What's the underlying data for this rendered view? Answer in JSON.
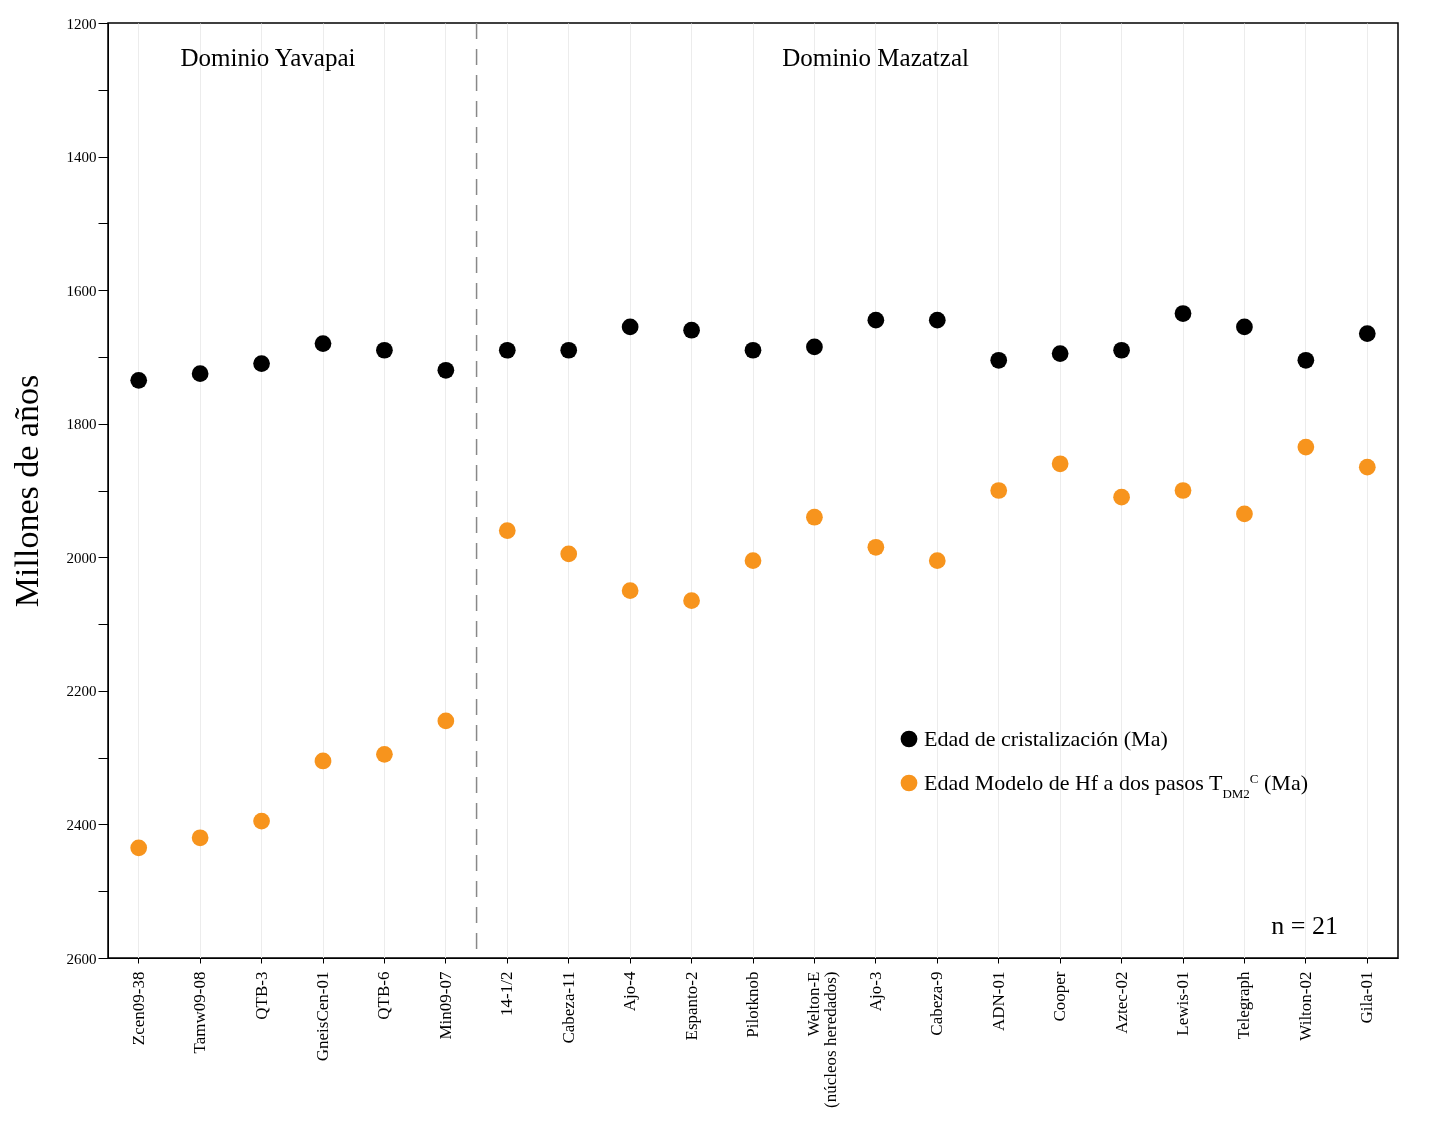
{
  "chart_data": {
    "type": "scatter",
    "ylabel": "Millones de años",
    "categories": [
      "Zcen09-38",
      "Tamw09-08",
      "QTB-3",
      "GneisCen-01",
      "QTB-6",
      "Min09-07",
      "14-1/2",
      "Cabeza-11",
      "Ajo-4",
      "Espanto-2",
      "Pilotknob",
      "Welton-E\n(núcleos heredados)",
      "Ajo-3",
      "Cabeza-9",
      "ADN-01",
      "Cooper",
      "Aztec-02",
      "Lewis-01",
      "Telegraph",
      "Wilton-02",
      "Gila-01"
    ],
    "series": [
      {
        "name": "Edad de cristalización (Ma)",
        "color": "#000000",
        "values": [
          1735,
          1725,
          1710,
          1680,
          1690,
          1720,
          1690,
          1690,
          1655,
          1660,
          1690,
          1685,
          1645,
          1645,
          1705,
          1695,
          1690,
          1635,
          1655,
          1705,
          1665
        ]
      },
      {
        "name": "Edad Modelo de Hf a dos pasos T$_{DM2}$$^{C}$ (Ma)",
        "color": "#f7941d",
        "values": [
          2435,
          2420,
          2395,
          2305,
          2295,
          2245,
          1960,
          1995,
          2050,
          2065,
          2005,
          1940,
          1985,
          2005,
          1900,
          1860,
          1910,
          1900,
          1935,
          1835,
          1865
        ]
      }
    ],
    "ylim": [
      2600,
      1200
    ],
    "yticks": [
      1200,
      {
        "value": 1300,
        "label": null
      },
      1400,
      {
        "value": 1500,
        "label": null
      },
      1600,
      {
        "value": 1700,
        "label": null
      },
      1800,
      {
        "value": 1900,
        "label": null
      },
      2000,
      {
        "value": 2100,
        "label": null
      },
      2200,
      {
        "value": 2300,
        "label": null
      },
      2400,
      {
        "value": 2500,
        "label": null
      },
      2600
    ],
    "ref_lines": [
      {
        "axis": "x",
        "value": "14-1/2",
        "color": "#888888",
        "line_style": "dashed"
      }
    ],
    "annotations": [
      "Dominio Yavapai",
      "Dominio Mazatzal",
      "n = 21"
    ],
    "grid": "x",
    "legend": "bottom right",
    "marker": "circle"
  }
}
